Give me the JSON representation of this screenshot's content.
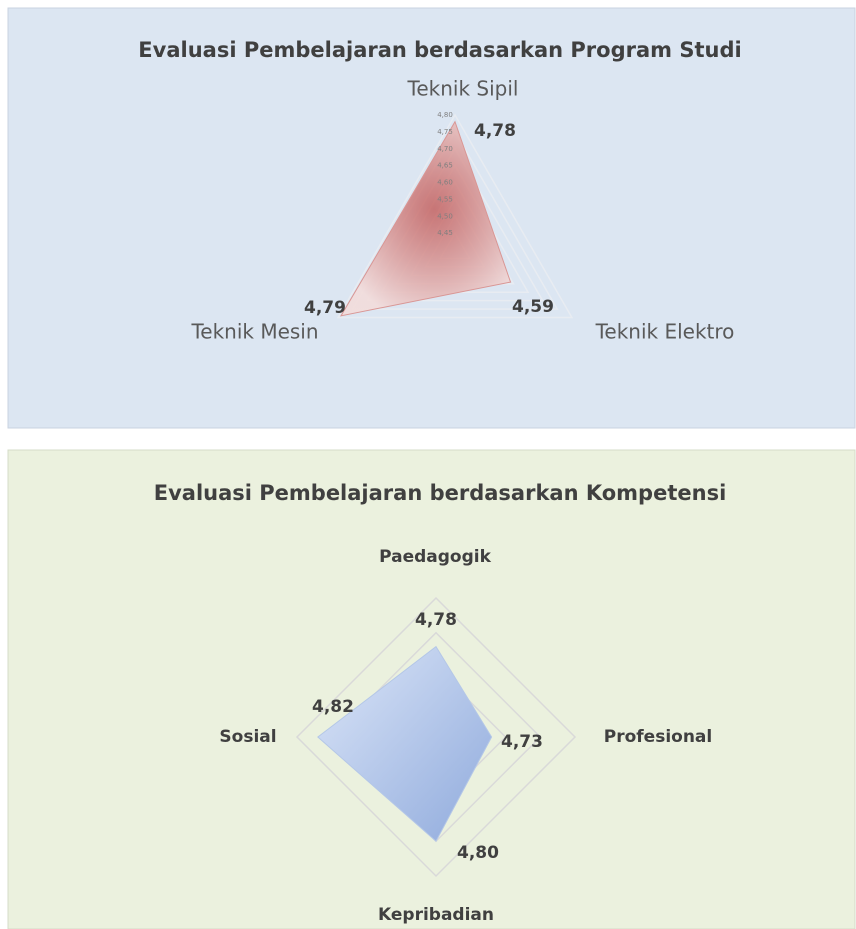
{
  "chart_data": [
    {
      "type": "radar",
      "title": "Evaluasi Pembelajaran berdasarkan Program Studi",
      "categories": [
        "Teknik Sipil",
        "Teknik Elektro",
        "Teknik Mesin"
      ],
      "values": [
        4.78,
        4.59,
        4.79
      ],
      "value_labels": [
        "4,78",
        "4,59",
        "4,79"
      ],
      "ylim": [
        4.4,
        4.8
      ],
      "yticks": [
        {
          "value": 4.45,
          "label": "4,45"
        },
        {
          "value": 4.5,
          "label": "4,50"
        },
        {
          "value": 4.55,
          "label": "4,55"
        },
        {
          "value": 4.6,
          "label": "4,60"
        },
        {
          "value": 4.65,
          "label": "4,65"
        },
        {
          "value": 4.7,
          "label": "4,70"
        },
        {
          "value": 4.75,
          "label": "4,75"
        },
        {
          "value": 4.8,
          "label": "4,80"
        }
      ],
      "color": "#d99694",
      "grid": true
    },
    {
      "type": "radar",
      "title": "Evaluasi Pembelajaran berdasarkan Kompetensi",
      "categories": [
        "Paedagogik",
        "Profesional",
        "Kepribadian",
        "Sosial"
      ],
      "values": [
        4.78,
        4.73,
        4.8,
        4.82
      ],
      "value_labels": [
        "4,78",
        "4,73",
        "4,80",
        "4,82"
      ],
      "ylim": [
        4.65,
        4.85
      ],
      "yticks": [
        4.7,
        4.75,
        4.8,
        4.85
      ],
      "color": "#8faadc",
      "grid": true
    }
  ]
}
